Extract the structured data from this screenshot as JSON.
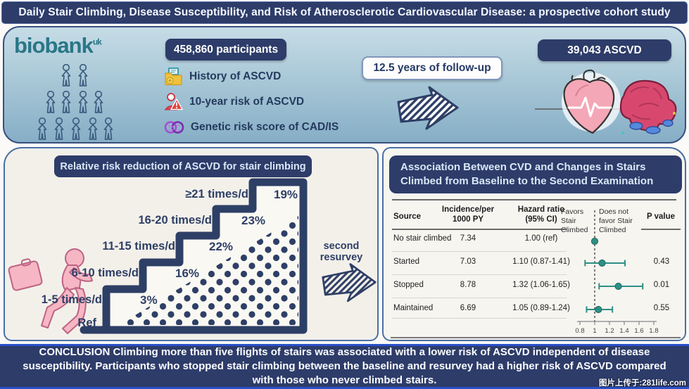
{
  "banner": {
    "title": "Daily Stair Climbing, Disease Susceptibility, and Risk of Atherosclerotic Cardiovascular Disease: a prospective cohort study"
  },
  "cohort": {
    "logo_text": "biobank",
    "logo_sup": "uk",
    "participants": "458,860 participants",
    "assessments": [
      {
        "icon": "medical-record-icon",
        "label": "History of ASCVD"
      },
      {
        "icon": "person-risk-icon",
        "label": "10-year risk of ASCVD"
      },
      {
        "icon": "dna-icon",
        "label": "Genetic risk score of CAD/IS"
      }
    ],
    "followup": "12.5 years of follow-up",
    "outcome": "39,043 ASCVD"
  },
  "stairs_panel": {
    "title": "Relative risk reduction of ASCVD for stair climbing",
    "resurvey_label": "second resurvey"
  },
  "chart_data": [
    {
      "type": "bar",
      "subtype": "staircase-infographic",
      "title": "Relative risk reduction of ASCVD for stair climbing",
      "categories": [
        "Ref",
        "1-5 times/d",
        "6-10 times/d",
        "11-15 times/d",
        "16-20 times/d",
        "≥21 times/d"
      ],
      "values": [
        0,
        3,
        16,
        22,
        23,
        19
      ],
      "value_labels": [
        "",
        "3%",
        "16%",
        "22%",
        "23%",
        "19%"
      ],
      "ylabel": "relative risk reduction (%)"
    },
    {
      "type": "scatter",
      "subtype": "forest-plot",
      "title": "Association Between CVD and Changes in Stairs Climbed from Baseline to the Second Examination",
      "categories": [
        "No stair climbed",
        "Started",
        "Stopped",
        "Maintained"
      ],
      "series": [
        {
          "name": "Hazard ratio",
          "values": [
            1.0,
            1.1,
            1.32,
            1.05
          ]
        },
        {
          "name": "CI lower",
          "values": [
            null,
            0.87,
            1.06,
            0.89
          ]
        },
        {
          "name": "CI upper",
          "values": [
            null,
            1.41,
            1.65,
            1.24
          ]
        }
      ],
      "xlim": [
        0.8,
        1.8
      ],
      "reference_line": 1.0
    }
  ],
  "assoc_panel": {
    "title": "Association Between CVD and Changes in Stairs Climbed from Baseline to the Second Examination",
    "col_source": "Source",
    "col_incidence": "Incidence/per 1000 PY",
    "col_hazard": "Hazard ratio (95% CI)",
    "col_pvalue": "P value",
    "favors_left": "Favors Stair Climbed",
    "favors_right": "Does not favor Stair Climbed",
    "rows": [
      {
        "source": "No stair climbed",
        "incidence": "7.34",
        "hr_text": "1.00 (ref)",
        "hr": 1.0,
        "lo": null,
        "hi": null,
        "p": ""
      },
      {
        "source": "Started",
        "incidence": "7.03",
        "hr_text": "1.10 (0.87-1.41)",
        "hr": 1.1,
        "lo": 0.87,
        "hi": 1.41,
        "p": "0.43"
      },
      {
        "source": "Stopped",
        "incidence": "8.78",
        "hr_text": "1.32 (1.06-1.65)",
        "hr": 1.32,
        "lo": 1.06,
        "hi": 1.65,
        "p": "0.01"
      },
      {
        "source": "Maintained",
        "incidence": "6.69",
        "hr_text": "1.05 (0.89-1.24)",
        "hr": 1.05,
        "lo": 0.89,
        "hi": 1.24,
        "p": "0.55"
      }
    ],
    "axis_ticks": [
      "0.8",
      "1",
      "1.2",
      "1.4",
      "1.6",
      "1.8"
    ]
  },
  "conclusion": {
    "text": "CONCLUSION Climbing more than five flights of stairs was associated with a lower risk of ASCVD  independent of disease susceptibility. Participants who stopped stair climbing between the baseline and resurvey had a higher risk of ASCVD compared with those who never climbed stairs."
  },
  "watermark": "图片上传于:281life.com",
  "colors": {
    "navy": "#2d3c69",
    "panel_border": "#4a6fa5",
    "cream": "#f3f0ea",
    "teal_logo": "#2a7687",
    "plot_teal": "#2e8f84",
    "runner_pink": "#f6b6c3",
    "conclusion_border_blue": "#2a50c8"
  }
}
